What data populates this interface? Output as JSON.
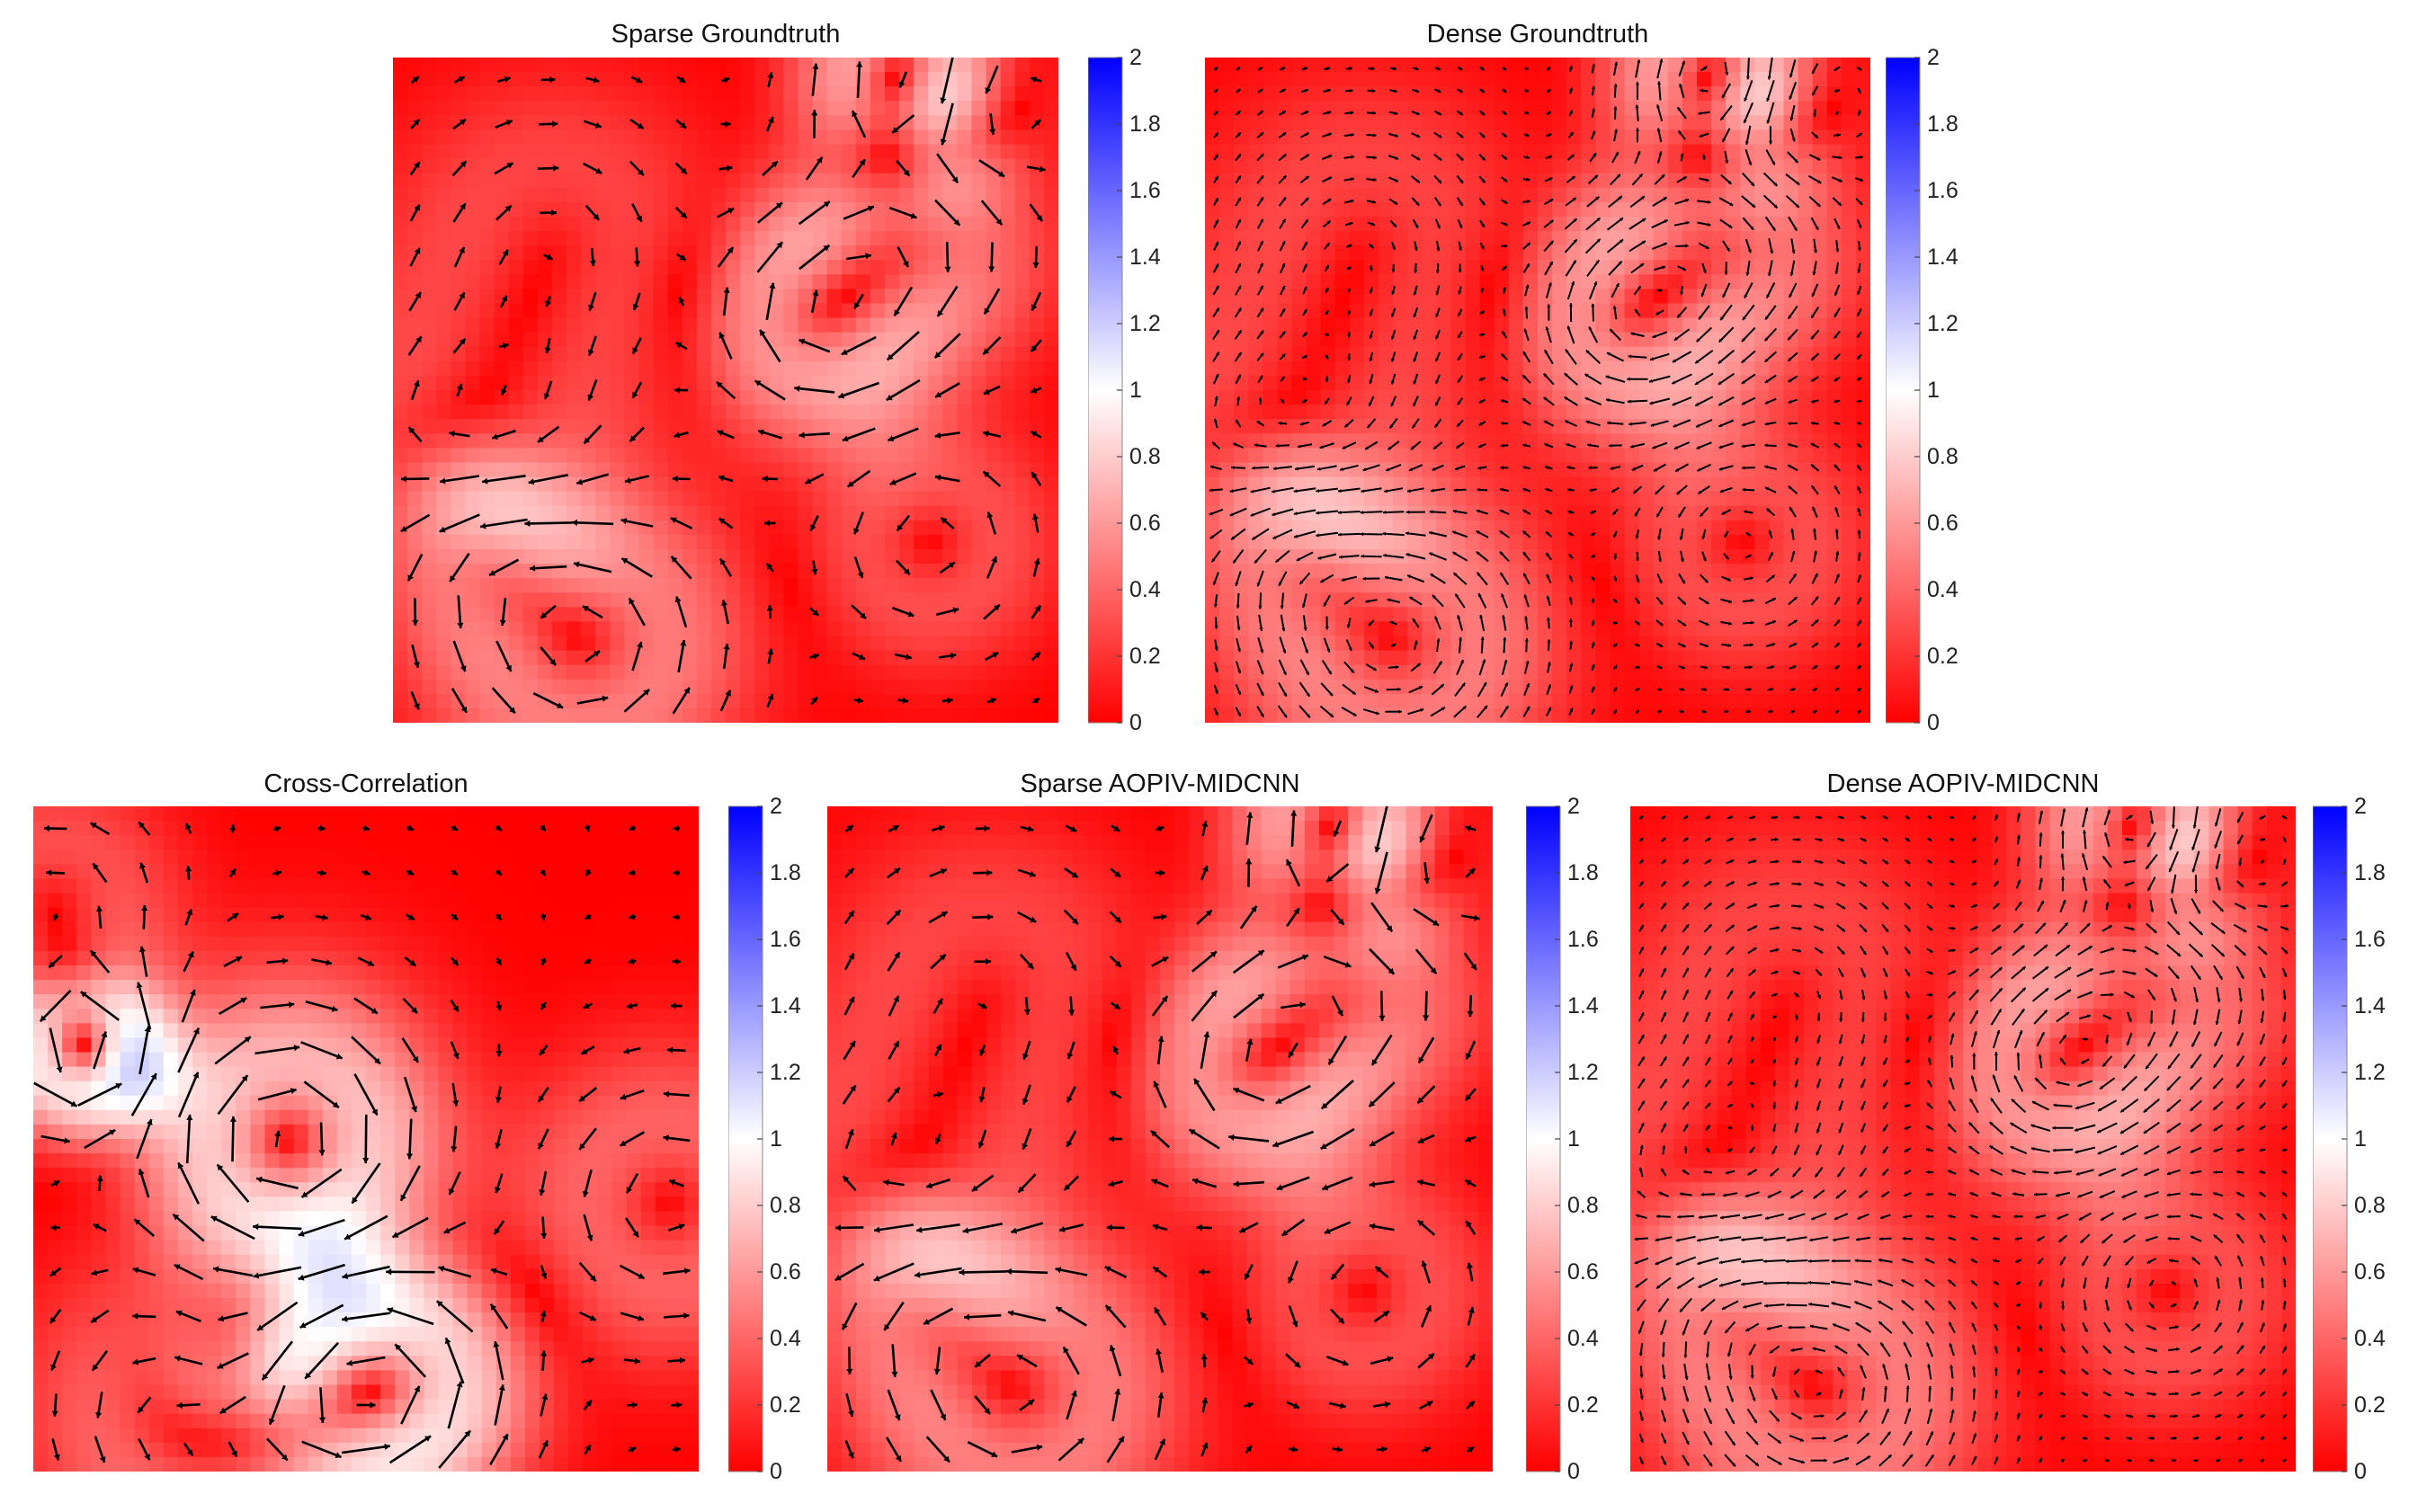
{
  "figure": {
    "colormap": {
      "low": "#ff0000",
      "mid": "#ffffff",
      "high": "#0000ff",
      "range": [
        0,
        2
      ]
    },
    "colorbar_ticks": [
      "0",
      "0.2",
      "0.4",
      "0.6",
      "0.8",
      "1",
      "1.2",
      "1.4",
      "1.6",
      "1.8",
      "2"
    ]
  },
  "chart_data": [
    {
      "type": "heatmap",
      "subtype": "vector-field (quiver) over scalar magnitude",
      "title": "Sparse Groundtruth",
      "clim": [
        0,
        2
      ],
      "grid": "sparse",
      "seed": 11
    },
    {
      "type": "heatmap",
      "subtype": "vector-field (quiver) over scalar magnitude",
      "title": "Dense Groundtruth",
      "clim": [
        0,
        2
      ],
      "grid": "dense",
      "seed": 11
    },
    {
      "type": "heatmap",
      "subtype": "vector-field (quiver) over scalar magnitude",
      "title": "Cross-Correlation",
      "clim": [
        0,
        2
      ],
      "grid": "sparse",
      "seed": 29
    },
    {
      "type": "heatmap",
      "subtype": "vector-field (quiver) over scalar magnitude",
      "title": "Sparse AOPIV-MIDCNN",
      "clim": [
        0,
        2
      ],
      "grid": "sparse",
      "seed": 11
    },
    {
      "type": "heatmap",
      "subtype": "vector-field (quiver) over scalar magnitude",
      "title": "Dense AOPIV-MIDCNN",
      "clim": [
        0,
        2
      ],
      "grid": "dense",
      "seed": 11
    }
  ]
}
